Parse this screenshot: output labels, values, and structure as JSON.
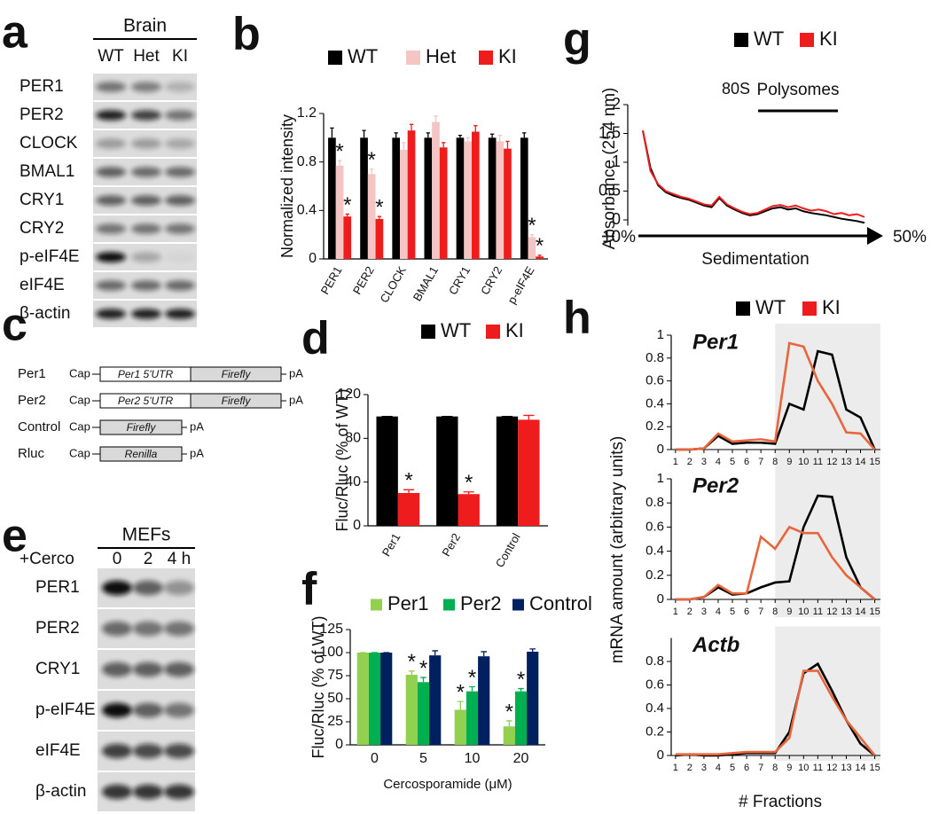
{
  "blot_a": {
    "letter": "a",
    "header": "Brain",
    "lanes": [
      "WT",
      "Het",
      "KI"
    ],
    "rows": [
      "PER1",
      "PER2",
      "CLOCK",
      "BMAL1",
      "CRY1",
      "CRY2",
      "p-eIF4E",
      "eIF4E",
      "β-actin"
    ]
  },
  "diagram_c": {
    "letter": "c",
    "constructs": [
      {
        "name": "Per1",
        "cap": "Cap",
        "parts": [
          "Per1 5'UTR",
          "Firefly"
        ],
        "tail": "pA"
      },
      {
        "name": "Per2",
        "cap": "Cap",
        "parts": [
          "Per2 5'UTR",
          "Firefly"
        ],
        "tail": "pA"
      },
      {
        "name": "Control",
        "cap": "Cap",
        "parts": [
          "Firefly"
        ],
        "tail": "pA"
      },
      {
        "name": "Rluc",
        "cap": "Cap",
        "parts": [
          "Renilla"
        ],
        "tail": "pA"
      }
    ]
  },
  "blot_e": {
    "letter": "e",
    "header": "MEFs",
    "treatment": "+Cerco",
    "lanes": [
      "0",
      "2",
      "4 h"
    ],
    "rows": [
      "PER1",
      "PER2",
      "CRY1",
      "p-eIF4E",
      "eIF4E",
      "β-actin"
    ]
  },
  "chart_data": [
    {
      "type": "bar",
      "letter": "b",
      "y_label": "Normalized intensity",
      "categories": [
        "PER1",
        "PER2",
        "CLOCK",
        "BMAL1",
        "CRY1",
        "CRY2",
        "p-eIF4E"
      ],
      "series": [
        {
          "name": "WT",
          "color": "#000000",
          "values": [
            1,
            1,
            1,
            1,
            1,
            1,
            1
          ],
          "errors": [
            0.08,
            0.06,
            0.04,
            0.04,
            0.02,
            0.03,
            0.04
          ],
          "stars": [
            null,
            null,
            null,
            null,
            null,
            null,
            null
          ]
        },
        {
          "name": "Het",
          "color": "#f4c5c2",
          "values": [
            0.77,
            0.7,
            0.9,
            1.13,
            0.97,
            0.97,
            0.18
          ],
          "errors": [
            0.04,
            0.04,
            0.06,
            0.05,
            0.03,
            0.05,
            0.02
          ],
          "stars": [
            "*",
            "*",
            null,
            null,
            null,
            null,
            "*"
          ]
        },
        {
          "name": "KI",
          "color": "#ee1c1c",
          "values": [
            0.35,
            0.33,
            1.06,
            0.92,
            1.05,
            0.91,
            0.02
          ],
          "errors": [
            0.02,
            0.02,
            0.05,
            0.04,
            0.05,
            0.06,
            0.01
          ],
          "stars": [
            "*",
            "*",
            null,
            null,
            null,
            null,
            "*"
          ]
        }
      ],
      "ylim": [
        0,
        1.2
      ],
      "yticks": [
        0,
        0.4,
        0.8,
        1.2
      ]
    },
    {
      "type": "bar",
      "letter": "d",
      "y_label": "Fluc/Rluc (% of WT)",
      "categories": [
        "Per1",
        "Per2",
        "Control"
      ],
      "series": [
        {
          "name": "WT",
          "color": "#000000",
          "values": [
            100,
            100,
            100
          ],
          "errors": [
            0,
            0,
            0
          ],
          "stars": [
            null,
            null,
            null
          ]
        },
        {
          "name": "KI",
          "color": "#ee1c1c",
          "values": [
            30,
            29,
            97
          ],
          "errors": [
            3,
            2,
            4
          ],
          "stars": [
            "*",
            "*",
            null
          ]
        }
      ],
      "ylim": [
        0,
        120
      ],
      "yticks": [
        0,
        40,
        80,
        120
      ]
    },
    {
      "type": "bar",
      "letter": "f",
      "y_label": "Fluc/Rluc (% of WT)",
      "x_label": "Cercosporamide (μM)",
      "categories": [
        "0",
        "5",
        "10",
        "20"
      ],
      "series": [
        {
          "name": "Per1",
          "color": "#92d050",
          "values": [
            100,
            76,
            38,
            20
          ],
          "errors": [
            0,
            4,
            9,
            6
          ],
          "stars": [
            null,
            "*",
            "*",
            "*"
          ]
        },
        {
          "name": "Per2",
          "color": "#00b050",
          "values": [
            100,
            68,
            58,
            58
          ],
          "errors": [
            0,
            5,
            5,
            3
          ],
          "stars": [
            null,
            "*",
            "*",
            "*"
          ]
        },
        {
          "name": "Control",
          "color": "#002060",
          "values": [
            100,
            97,
            96,
            101
          ],
          "errors": [
            0,
            5,
            5,
            3
          ],
          "stars": [
            null,
            null,
            null,
            null
          ]
        }
      ],
      "ylim": [
        0,
        125
      ],
      "yticks": [
        0,
        25,
        50,
        75,
        100,
        125
      ]
    },
    {
      "type": "line",
      "letter": "g",
      "y_label": "Absorbance (254 nm)",
      "x_label": "Sedimentation",
      "x_start": "10%",
      "x_end": "50%",
      "annotations": [
        "80S",
        "Polysomes"
      ],
      "series": [
        {
          "name": "WT",
          "color": "#000000",
          "values": [
            1.55,
            0.9,
            0.6,
            0.48,
            0.42,
            0.38,
            0.35,
            0.3,
            0.25,
            0.22,
            0.38,
            0.25,
            0.18,
            0.12,
            0.08,
            0.1,
            0.15,
            0.2,
            0.22,
            0.18,
            0.2,
            0.15,
            0.12,
            0.1,
            0.08,
            0.05,
            0.02,
            0,
            -0.02,
            -0.05
          ]
        },
        {
          "name": "KI",
          "color": "#ee1c1c",
          "values": [
            1.55,
            0.85,
            0.62,
            0.5,
            0.45,
            0.4,
            0.37,
            0.32,
            0.27,
            0.25,
            0.4,
            0.27,
            0.2,
            0.14,
            0.1,
            0.12,
            0.18,
            0.24,
            0.26,
            0.22,
            0.25,
            0.2,
            0.16,
            0.18,
            0.15,
            0.1,
            0.12,
            0.08,
            0.1,
            0.05
          ]
        }
      ],
      "ylim": [
        -0.1,
        2
      ],
      "yticks": [
        0,
        0.5,
        1,
        1.5,
        2
      ]
    },
    {
      "type": "line",
      "letter": "h",
      "y_label": "mRNA amount (arbitrary units)",
      "x_label": "# Fractions",
      "legend": [
        {
          "name": "WT",
          "color": "#000000"
        },
        {
          "name": "KI",
          "color": "#ee1c1c"
        }
      ],
      "x": [
        1,
        2,
        3,
        4,
        5,
        6,
        7,
        8,
        9,
        10,
        11,
        12,
        13,
        14,
        15
      ],
      "xlim": [
        0.7,
        15.4
      ],
      "shade": [
        8,
        15.4
      ],
      "panels": [
        {
          "title": "Per1",
          "ylim": [
            0,
            1
          ],
          "yticks": [
            0,
            0.2,
            0.4,
            0.6,
            0.8,
            1
          ],
          "series": [
            {
              "color": "#000000",
              "values": [
                0,
                0,
                0.01,
                0.12,
                0.05,
                0.06,
                0.06,
                0.05,
                0.4,
                0.35,
                0.86,
                0.83,
                0.35,
                0.28,
                0
              ]
            },
            {
              "color": "#e8663c",
              "values": [
                0,
                0,
                0.01,
                0.14,
                0.07,
                0.08,
                0.09,
                0.07,
                0.93,
                0.9,
                0.6,
                0.4,
                0.15,
                0.14,
                0
              ]
            }
          ]
        },
        {
          "title": "Per2",
          "ylim": [
            0,
            1
          ],
          "yticks": [
            0,
            0.2,
            0.4,
            0.6,
            0.8,
            1
          ],
          "series": [
            {
              "color": "#000000",
              "values": [
                0,
                0,
                0.02,
                0.1,
                0.04,
                0.05,
                0.1,
                0.14,
                0.15,
                0.6,
                0.86,
                0.85,
                0.35,
                0.1,
                0
              ]
            },
            {
              "color": "#e8663c",
              "values": [
                0,
                0,
                0.02,
                0.12,
                0.05,
                0.05,
                0.52,
                0.42,
                0.6,
                0.55,
                0.55,
                0.35,
                0.2,
                0.1,
                0
              ]
            }
          ]
        },
        {
          "title": "Actb",
          "ylim": [
            0,
            1
          ],
          "yticks": [
            0,
            0.2,
            0.4,
            0.6,
            0.8
          ],
          "series": [
            {
              "color": "#000000",
              "values": [
                0,
                0.01,
                0,
                0,
                0.01,
                0.02,
                0.02,
                0.02,
                0.2,
                0.7,
                0.78,
                0.55,
                0.3,
                0.1,
                0
              ]
            },
            {
              "color": "#e8663c",
              "values": [
                0.01,
                0.01,
                0.01,
                0.01,
                0.02,
                0.03,
                0.03,
                0.03,
                0.15,
                0.72,
                0.72,
                0.5,
                0.3,
                0.15,
                0
              ]
            }
          ]
        }
      ]
    }
  ]
}
